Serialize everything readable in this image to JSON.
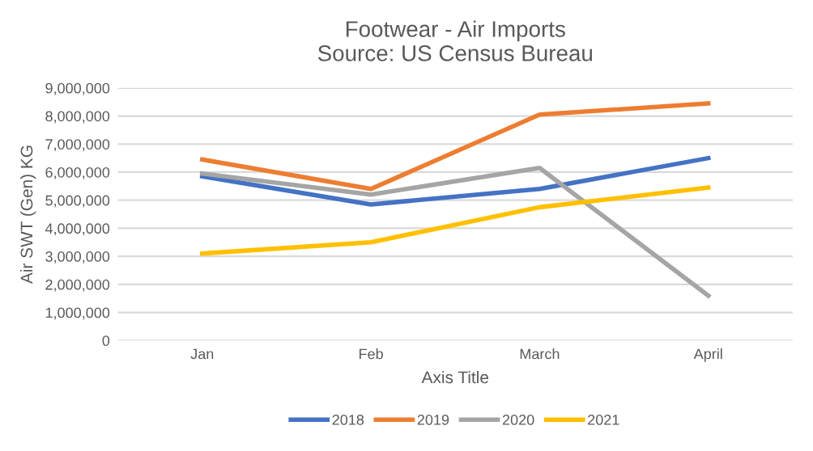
{
  "chart_data": {
    "type": "line",
    "title": "Footwear - Air Imports\nSource: US Census Bureau",
    "xlabel": "Axis Title",
    "ylabel": "Air SWT (Gen) KG",
    "categories": [
      "Jan",
      "Feb",
      "March",
      "April"
    ],
    "series": [
      {
        "name": "2018",
        "color": "#4472c4",
        "values": [
          5850000,
          4850000,
          5400000,
          6500000
        ]
      },
      {
        "name": "2019",
        "color": "#ed7d31",
        "values": [
          6450000,
          5400000,
          8050000,
          8450000
        ]
      },
      {
        "name": "2020",
        "color": "#a5a5a5",
        "values": [
          5950000,
          5200000,
          6150000,
          1600000
        ]
      },
      {
        "name": "2021",
        "color": "#ffc000",
        "values": [
          3100000,
          3500000,
          4750000,
          5450000
        ]
      }
    ],
    "ylim": [
      0,
      9000000
    ],
    "yticks": [
      {
        "value": 0,
        "label": "0"
      },
      {
        "value": 1000000,
        "label": "1,000,000"
      },
      {
        "value": 2000000,
        "label": "2,000,000"
      },
      {
        "value": 3000000,
        "label": "3,000,000"
      },
      {
        "value": 4000000,
        "label": "4,000,000"
      },
      {
        "value": 5000000,
        "label": "5,000,000"
      },
      {
        "value": 6000000,
        "label": "6,000,000"
      },
      {
        "value": 7000000,
        "label": "7,000,000"
      },
      {
        "value": 8000000,
        "label": "8,000,000"
      },
      {
        "value": 9000000,
        "label": "9,000,000"
      }
    ],
    "grid": "y",
    "legend": "bottom",
    "marker": "none",
    "line_style": "solid"
  }
}
